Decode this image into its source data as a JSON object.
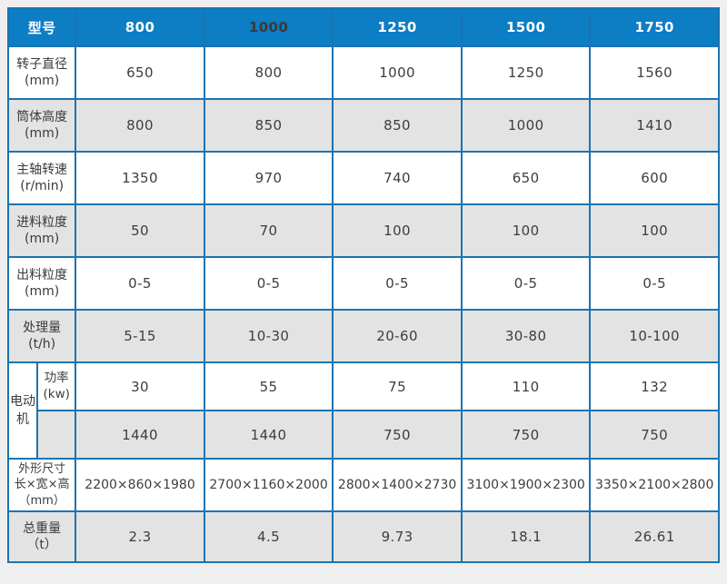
{
  "colors": {
    "header_bg": "#0d7dc4",
    "border_blue": "#1b74b2",
    "stripe_gray": "#e3e3e3",
    "page_bg": "#f0eff0",
    "text_dark": "#3d3d3d",
    "header_text": "#ffffff",
    "header_text_dark_variant": "#3a3a3a"
  },
  "table": {
    "header": {
      "col0": "型号",
      "models": [
        "800",
        "1000",
        "1250",
        "1500",
        "1750"
      ]
    },
    "rows": [
      {
        "label": "转子直径",
        "unit": "(mm)",
        "values": [
          "650",
          "800",
          "1000",
          "1250",
          "1560"
        ]
      },
      {
        "label": "筒体高度",
        "unit": "(mm)",
        "values": [
          "800",
          "850",
          "850",
          "1000",
          "1410"
        ]
      },
      {
        "label": "主轴转速",
        "unit": "(r/min)",
        "values": [
          "1350",
          "970",
          "740",
          "650",
          "600"
        ]
      },
      {
        "label": "进料粒度",
        "unit": "(mm)",
        "values": [
          "50",
          "70",
          "100",
          "100",
          "100"
        ]
      },
      {
        "label": "出料粒度",
        "unit": "(mm)",
        "values": [
          "0-5",
          "0-5",
          "0-5",
          "0-5",
          "0-5"
        ]
      },
      {
        "label": "处理量",
        "unit": "(t/h)",
        "values": [
          "5-15",
          "10-30",
          "20-60",
          "30-80",
          "10-100"
        ]
      }
    ],
    "motor": {
      "group_label": "电动机",
      "power": {
        "label": "功率",
        "unit": "(kw)",
        "values": [
          "30",
          "55",
          "75",
          "110",
          "132"
        ]
      },
      "speed": {
        "label": "",
        "values": [
          "1440",
          "1440",
          "750",
          "750",
          "750"
        ]
      }
    },
    "dimensions": {
      "label_line1": "外形尺寸",
      "label_line2": "长×宽×高",
      "label_line3": "（mm）",
      "values": [
        "2200×860×1980",
        "2700×1160×2000",
        "2800×1400×2730",
        "3100×1900×2300",
        "3350×2100×2800"
      ]
    },
    "weight": {
      "label": "总重量",
      "unit": "（t）",
      "values": [
        "2.3",
        "4.5",
        "9.73",
        "18.1",
        "26.61"
      ]
    }
  },
  "chart_data": {
    "type": "table",
    "columns": [
      "型号",
      "800",
      "1000",
      "1250",
      "1500",
      "1750"
    ],
    "rows": [
      {
        "label": "转子直径(mm)",
        "values": [
          "650",
          "800",
          "1000",
          "1250",
          "1560"
        ]
      },
      {
        "label": "筒体高度(mm)",
        "values": [
          "800",
          "850",
          "850",
          "1000",
          "1410"
        ]
      },
      {
        "label": "主轴转速(r/min)",
        "values": [
          "1350",
          "970",
          "740",
          "650",
          "600"
        ]
      },
      {
        "label": "进料粒度(mm)",
        "values": [
          "50",
          "70",
          "100",
          "100",
          "100"
        ]
      },
      {
        "label": "出料粒度(mm)",
        "values": [
          "0-5",
          "0-5",
          "0-5",
          "0-5",
          "0-5"
        ]
      },
      {
        "label": "处理量(t/h)",
        "values": [
          "5-15",
          "10-30",
          "20-60",
          "30-80",
          "10-100"
        ]
      },
      {
        "group": "电动机",
        "label": "功率(kw)",
        "values": [
          "30",
          "55",
          "75",
          "110",
          "132"
        ]
      },
      {
        "group": "电动机",
        "label": "",
        "values": [
          "1440",
          "1440",
          "750",
          "750",
          "750"
        ]
      },
      {
        "label": "外形尺寸 长×宽×高（mm）",
        "values": [
          "2200×860×1980",
          "2700×1160×2000",
          "2800×1400×2730",
          "3100×1900×2300",
          "3350×2100×2800"
        ]
      },
      {
        "label": "总重量（t）",
        "values": [
          "2.3",
          "4.5",
          "9.73",
          "18.1",
          "26.61"
        ]
      }
    ]
  }
}
